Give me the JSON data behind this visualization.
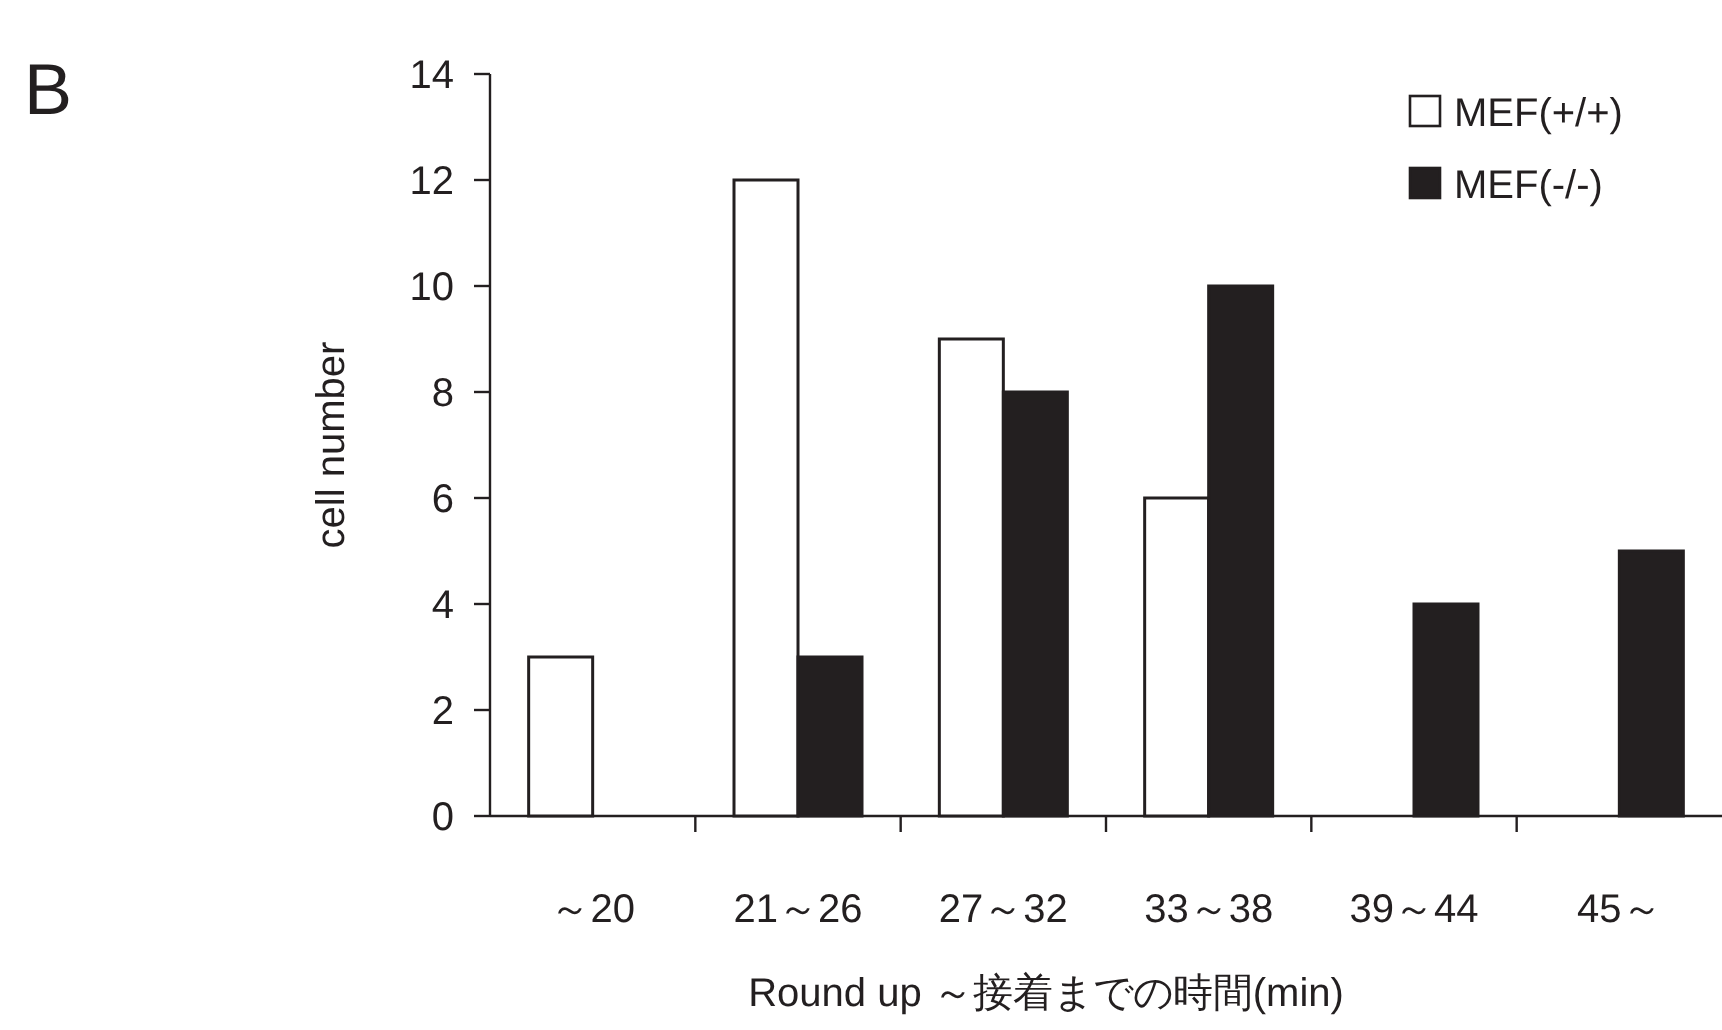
{
  "chart_data": {
    "type": "bar",
    "xlabel": "Round up ～接着までの時間(min)",
    "ylabel": "cell number",
    "annotations": [
      "B"
    ],
    "categories": [
      "～20",
      "21～26",
      "27～32",
      "33～38",
      "39～44",
      "45～"
    ],
    "ylim": [
      0,
      14
    ],
    "yticks": [
      0,
      2,
      4,
      6,
      8,
      10,
      12,
      14
    ],
    "legend": "top right",
    "grid": false,
    "series": [
      {
        "name": "MEF(+/+)",
        "color": "#ffffff",
        "values": [
          3,
          12,
          9,
          6,
          null,
          null
        ]
      },
      {
        "name": "MEF(-/-)",
        "color": "#231f20",
        "values": [
          null,
          3,
          8,
          10,
          4,
          5
        ]
      }
    ]
  }
}
